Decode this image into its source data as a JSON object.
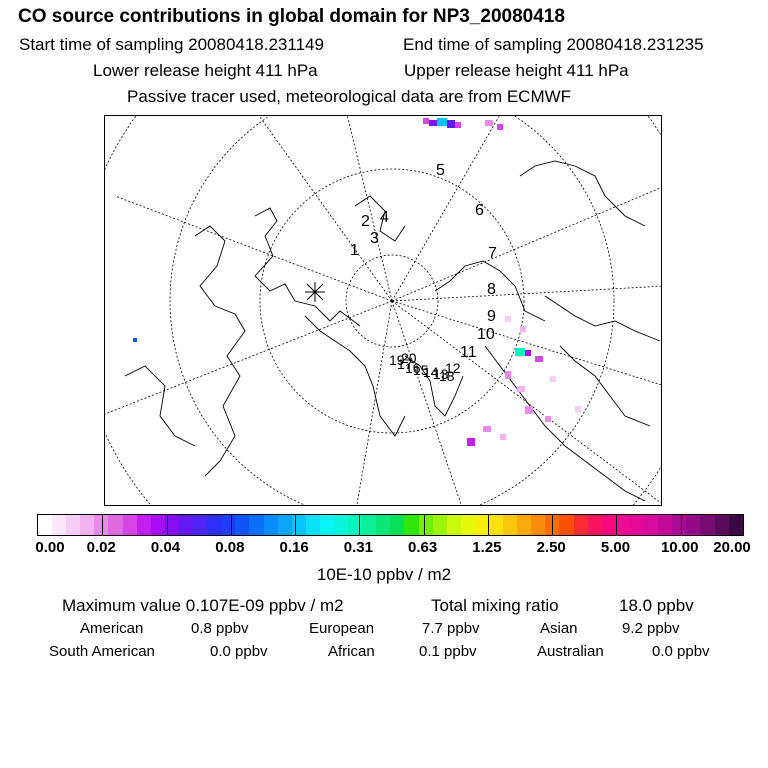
{
  "header": {
    "title": "CO  source contributions in global domain for NP3_20080418",
    "start_time": "Start time of sampling 20080418.231149",
    "end_time": "End time of sampling 20080418.231235",
    "lower_height": "Lower release height  411 hPa",
    "upper_height": "Upper release height  411 hPa",
    "tracer_note": "Passive tracer used, meteorological data are from ECMWF"
  },
  "map": {
    "trajectory_labels": [
      "1",
      "2",
      "3",
      "4",
      "5",
      "6",
      "7",
      "8",
      "9",
      "10",
      "11",
      "12",
      "13",
      "14",
      "15",
      "16",
      "17",
      "18",
      "19",
      "20"
    ],
    "release_marker": "asterisk-icon"
  },
  "colorbar": {
    "tick_labels": [
      "0.00",
      "0.02",
      "0.04",
      "0.08",
      "0.16",
      "0.31",
      "0.63",
      "1.25",
      "2.50",
      "5.00",
      "10.00",
      "20.00"
    ],
    "unit_label": "10E-10 ppbv / m2",
    "colors": [
      "#ffffff",
      "#fbe6fb",
      "#f6cdf6",
      "#f0b3f0",
      "#e88be8",
      "#df6adf",
      "#d447e6",
      "#c21ef0",
      "#a70cf2",
      "#8410f2",
      "#6419f2",
      "#4a25f5",
      "#2f2ef5",
      "#1f3cf7",
      "#0f55f5",
      "#0a6ff7",
      "#0a8bfa",
      "#0aa6fa",
      "#0ac3fa",
      "#0ae0fa",
      "#0af5f5",
      "#0af5dc",
      "#0af5be",
      "#0af09b",
      "#0ae678",
      "#0ae055",
      "#2ee60a",
      "#6ef00a",
      "#9ef50a",
      "#c8fa0a",
      "#e6fa0a",
      "#f7f00a",
      "#fae10a",
      "#fac80a",
      "#faaa0a",
      "#fa8c0a",
      "#fa6e0a",
      "#fa500a",
      "#fa2a32",
      "#fa1460",
      "#f70a7f",
      "#f00a8f",
      "#e40a99",
      "#d60a9c",
      "#c20a9a",
      "#aa0a93",
      "#920a86",
      "#780a74",
      "#5a0a5a",
      "#3c0a42"
    ]
  },
  "stats": {
    "max_value": "Maximum value  0.107E-09 ppbv / m2",
    "total_mixing": "Total mixing ratio",
    "total_value": "18.0 ppbv"
  },
  "contributions": [
    {
      "region": "American",
      "value": "0.8 ppbv"
    },
    {
      "region": "European",
      "value": "7.7 ppbv"
    },
    {
      "region": "Asian",
      "value": "9.2 ppbv"
    },
    {
      "region": "South American",
      "value": "0.0 ppbv"
    },
    {
      "region": "African",
      "value": "0.1 ppbv"
    },
    {
      "region": "Australian",
      "value": "0.0 ppbv"
    }
  ]
}
